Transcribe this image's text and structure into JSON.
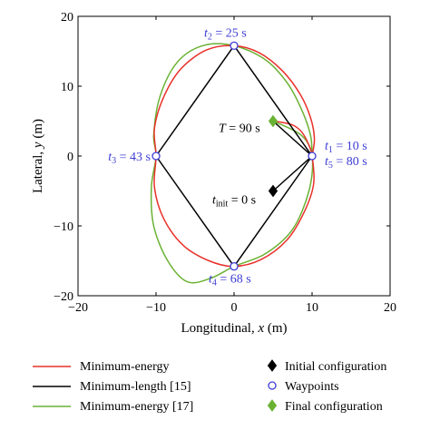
{
  "chart_data": {
    "type": "line",
    "xlabel": {
      "prefix": "Longitudinal, ",
      "var": "x",
      "unit": " (m)"
    },
    "ylabel": {
      "prefix": "Lateral, ",
      "var": "y",
      "unit": " (m)"
    },
    "xlim": [
      -20,
      20
    ],
    "ylim": [
      -20,
      20
    ],
    "xticks": [
      -20,
      -10,
      0,
      10,
      20
    ],
    "yticks": [
      -20,
      -10,
      0,
      10,
      20
    ],
    "grid": false,
    "legend_position": "bottom",
    "series": [
      {
        "name": "Minimum-energy",
        "color": "#e8302a",
        "points": [
          [
            10,
            0
          ],
          [
            10.3,
            2.5
          ],
          [
            9.8,
            5.5
          ],
          [
            8.5,
            8.8
          ],
          [
            6.2,
            12.2
          ],
          [
            3.2,
            14.8
          ],
          [
            0,
            15.8
          ],
          [
            -3.5,
            15.2
          ],
          [
            -6.8,
            12.5
          ],
          [
            -9.0,
            8.5
          ],
          [
            -10.2,
            4
          ],
          [
            -10.0,
            0
          ],
          [
            -10.2,
            -4.5
          ],
          [
            -9.0,
            -9
          ],
          [
            -6.5,
            -12.8
          ],
          [
            -3.2,
            -15
          ],
          [
            0,
            -15.8
          ],
          [
            3.5,
            -14.8
          ],
          [
            6.8,
            -12
          ],
          [
            9.0,
            -8
          ],
          [
            10.2,
            -4
          ],
          [
            10,
            0
          ],
          [
            9.5,
            1.8
          ],
          [
            8.7,
            3.4
          ],
          [
            7.6,
            4.4
          ],
          [
            6.2,
            4.8
          ],
          [
            5,
            5
          ]
        ]
      },
      {
        "name": "Minimum-length [15]",
        "color": "#000000",
        "points": [
          [
            5,
            -5
          ],
          [
            10,
            0
          ],
          [
            0,
            15.8
          ],
          [
            -10,
            0
          ],
          [
            0,
            -15.8
          ],
          [
            10,
            0
          ],
          [
            5,
            5
          ]
        ]
      },
      {
        "name": "Minimum-energy [17]",
        "color": "#6ab233",
        "points": [
          [
            10,
            0
          ],
          [
            9.8,
            3
          ],
          [
            8.6,
            6.8
          ],
          [
            6.8,
            10.5
          ],
          [
            4,
            13.8
          ],
          [
            0,
            15.8
          ],
          [
            -4,
            15.8
          ],
          [
            -7.3,
            13.4
          ],
          [
            -9.5,
            8.5
          ],
          [
            -10.3,
            3
          ],
          [
            -10,
            0
          ],
          [
            -10.6,
            -4.5
          ],
          [
            -10.3,
            -10
          ],
          [
            -8.5,
            -15
          ],
          [
            -6,
            -18
          ],
          [
            -3,
            -17.5
          ],
          [
            0,
            -15.8
          ],
          [
            4,
            -14
          ],
          [
            7.5,
            -10.5
          ],
          [
            9.6,
            -5
          ],
          [
            10,
            0
          ],
          [
            8.6,
            3
          ],
          [
            5,
            5
          ]
        ]
      }
    ],
    "waypoints": [
      [
        0,
        15.8
      ],
      [
        10,
        0
      ],
      [
        -10,
        0
      ],
      [
        0,
        -15.8
      ]
    ],
    "initial_configuration": [
      5,
      -5
    ],
    "final_configuration": [
      5,
      5
    ],
    "markers": {
      "initial_color": "#000000",
      "waypoint_color": "#3d3dd6",
      "final_color": "#6ab233"
    },
    "annotations": [
      {
        "id": "t2",
        "sub": "2",
        "text": " = 25 s",
        "x": 0,
        "y": 15.8,
        "color": "#3d3dd6"
      },
      {
        "id": "t1",
        "sub": "1",
        "text": " = 10 s",
        "x": 10,
        "y": 0,
        "color": "#3d3dd6"
      },
      {
        "id": "t5",
        "sub": "5",
        "text": " = 80 s",
        "x": 10,
        "y": 0,
        "color": "#3d3dd6"
      },
      {
        "id": "t3",
        "sub": "3",
        "text": " = 43 s",
        "x": -10,
        "y": 0,
        "color": "#3d3dd6"
      },
      {
        "id": "t4",
        "sub": "4",
        "text": " = 68 s",
        "x": 0,
        "y": -15.8,
        "color": "#3d3dd6"
      },
      {
        "id": "T",
        "sub": "",
        "text": " = 90 s",
        "x": 5,
        "y": 5,
        "color": "#000000"
      },
      {
        "id": "tinit",
        "sub": "init",
        "text": " = 0 s",
        "x": 5,
        "y": -5,
        "color": "#000000"
      }
    ],
    "legend": [
      {
        "label": "Minimum-energy",
        "kind": "line",
        "color": "#e8302a"
      },
      {
        "label": "Minimum-length [15]",
        "kind": "line",
        "color": "#000000"
      },
      {
        "label": "Minimum-energy [17]",
        "kind": "line",
        "color": "#6ab233"
      },
      {
        "label": "Initial configuration",
        "kind": "diamond",
        "color": "#000000"
      },
      {
        "label": "Waypoints",
        "kind": "circle",
        "color": "#3d3dd6"
      },
      {
        "label": "Final configuration",
        "kind": "diamond",
        "color": "#6ab233"
      }
    ]
  }
}
